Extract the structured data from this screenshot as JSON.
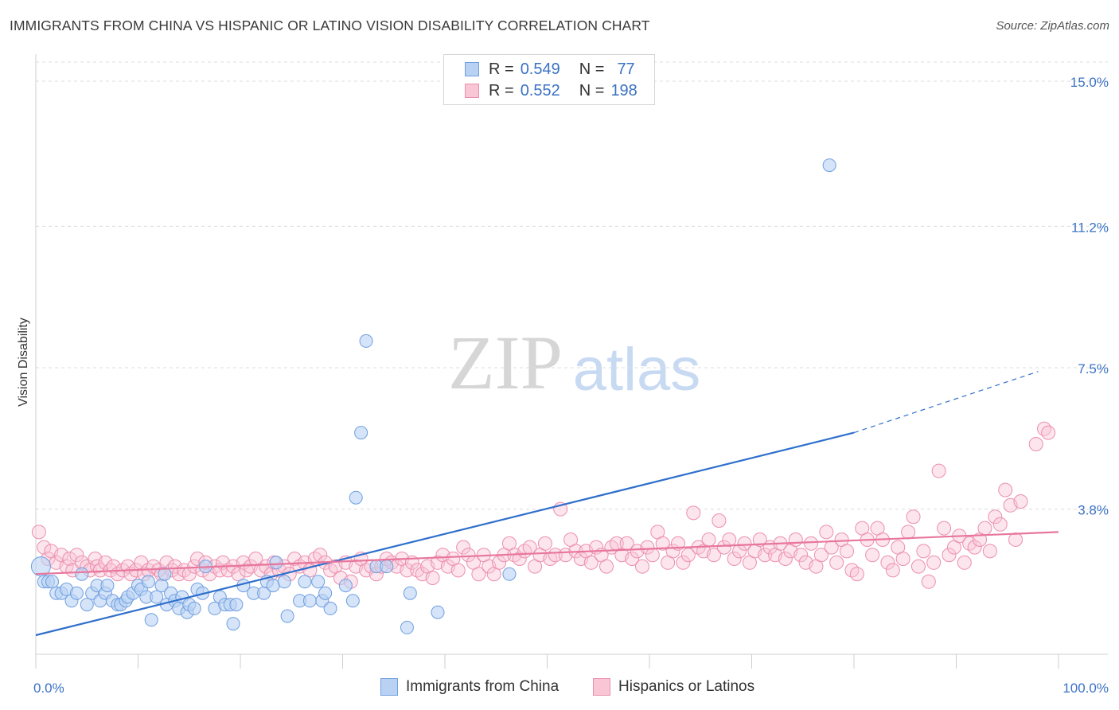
{
  "title": "IMMIGRANTS FROM CHINA VS HISPANIC OR LATINO VISION DISABILITY CORRELATION CHART",
  "source": "Source: ZipAtlas.com",
  "watermark": {
    "zip": "ZIP",
    "atlas": "atlas"
  },
  "legend": {
    "r_label": "R =",
    "n_label": "N =",
    "series": [
      {
        "name": "Immigrants from China",
        "r": "0.549",
        "n": "77"
      },
      {
        "name": "Hispanics or Latinos",
        "r": "0.552",
        "n": "198"
      }
    ]
  },
  "colors": {
    "blue_fill": "#b9d2f4",
    "blue_stroke": "#6f9fe0",
    "blue_line": "#2f6fcc",
    "pink_fill": "#f9c6d6",
    "pink_stroke": "#ec8fae",
    "pink_line": "#e8769c",
    "tick_label": "#3b72c4",
    "grid": "#dcdcdc"
  },
  "chart_data": {
    "type": "scatter",
    "title": "IMMIGRANTS FROM CHINA VS HISPANIC OR LATINO VISION DISABILITY CORRELATION CHART",
    "xlabel": "",
    "ylabel": "Vision Disability",
    "xlim": [
      0,
      100
    ],
    "ylim": [
      0,
      15.5
    ],
    "x_tick_labels": [
      "0.0%",
      "100.0%"
    ],
    "y_ticks": [
      3.8,
      7.5,
      11.2,
      15.0
    ],
    "y_tick_labels": [
      "3.8%",
      "7.5%",
      "11.2%",
      "15.0%"
    ],
    "grid": "horizontal dashed",
    "series": [
      {
        "name": "Immigrants from China",
        "r": 0.549,
        "n": 77,
        "trend": {
          "x0": 0,
          "y0": 0.5,
          "x1": 80,
          "y1": 5.8,
          "dashed_to_x": 98,
          "dashed_to_y": 7.4
        },
        "points": [
          [
            0.5,
            2.3
          ],
          [
            0.8,
            1.9
          ],
          [
            1.2,
            1.9
          ],
          [
            1.6,
            1.9
          ],
          [
            2.0,
            1.6
          ],
          [
            2.5,
            1.6
          ],
          [
            3.0,
            1.7
          ],
          [
            3.5,
            1.4
          ],
          [
            4.0,
            1.6
          ],
          [
            4.5,
            2.1
          ],
          [
            5.0,
            1.3
          ],
          [
            5.5,
            1.6
          ],
          [
            6.0,
            1.8
          ],
          [
            6.3,
            1.4
          ],
          [
            6.8,
            1.6
          ],
          [
            7.0,
            1.8
          ],
          [
            7.5,
            1.4
          ],
          [
            8.0,
            1.3
          ],
          [
            8.3,
            1.3
          ],
          [
            8.8,
            1.4
          ],
          [
            9.0,
            1.5
          ],
          [
            9.5,
            1.6
          ],
          [
            10.0,
            1.8
          ],
          [
            10.3,
            1.7
          ],
          [
            10.8,
            1.5
          ],
          [
            11.0,
            1.9
          ],
          [
            11.3,
            0.9
          ],
          [
            11.8,
            1.5
          ],
          [
            12.3,
            1.8
          ],
          [
            12.6,
            2.1
          ],
          [
            12.8,
            1.3
          ],
          [
            13.2,
            1.6
          ],
          [
            13.6,
            1.4
          ],
          [
            14.0,
            1.2
          ],
          [
            14.3,
            1.5
          ],
          [
            14.8,
            1.1
          ],
          [
            15.0,
            1.3
          ],
          [
            15.5,
            1.2
          ],
          [
            15.8,
            1.7
          ],
          [
            16.3,
            1.6
          ],
          [
            16.6,
            2.3
          ],
          [
            17.5,
            1.2
          ],
          [
            18.0,
            1.5
          ],
          [
            18.5,
            1.3
          ],
          [
            19.0,
            1.3
          ],
          [
            19.3,
            0.8
          ],
          [
            19.6,
            1.3
          ],
          [
            20.3,
            1.8
          ],
          [
            21.3,
            1.6
          ],
          [
            22.3,
            1.6
          ],
          [
            22.6,
            1.9
          ],
          [
            23.2,
            1.8
          ],
          [
            23.5,
            2.4
          ],
          [
            24.3,
            1.9
          ],
          [
            24.6,
            1.0
          ],
          [
            25.8,
            1.4
          ],
          [
            26.3,
            1.9
          ],
          [
            26.8,
            1.4
          ],
          [
            27.6,
            1.9
          ],
          [
            28.0,
            1.4
          ],
          [
            28.3,
            1.6
          ],
          [
            28.8,
            1.2
          ],
          [
            30.3,
            1.8
          ],
          [
            31.0,
            1.4
          ],
          [
            31.3,
            4.1
          ],
          [
            31.8,
            5.8
          ],
          [
            32.3,
            8.2
          ],
          [
            33.3,
            2.3
          ],
          [
            34.3,
            2.3
          ],
          [
            36.3,
            0.7
          ],
          [
            36.6,
            1.6
          ],
          [
            39.3,
            1.1
          ],
          [
            46.3,
            2.1
          ],
          [
            77.6,
            12.8
          ]
        ]
      },
      {
        "name": "Hispanics or Latinos",
        "r": 0.552,
        "n": 198,
        "trend": {
          "x0": 0,
          "y0": 2.1,
          "x1": 100,
          "y1": 3.2
        },
        "points": [
          [
            0.3,
            3.2
          ],
          [
            0.8,
            2.8
          ],
          [
            1.2,
            2.5
          ],
          [
            1.5,
            2.7
          ],
          [
            2.0,
            2.4
          ],
          [
            2.5,
            2.6
          ],
          [
            3.0,
            2.3
          ],
          [
            3.3,
            2.5
          ],
          [
            3.6,
            2.2
          ],
          [
            4.0,
            2.6
          ],
          [
            4.5,
            2.4
          ],
          [
            5.0,
            2.3
          ],
          [
            5.3,
            2.2
          ],
          [
            5.8,
            2.5
          ],
          [
            6.0,
            2.3
          ],
          [
            6.3,
            2.2
          ],
          [
            6.8,
            2.4
          ],
          [
            7.3,
            2.2
          ],
          [
            7.6,
            2.3
          ],
          [
            8.0,
            2.1
          ],
          [
            8.5,
            2.2
          ],
          [
            9.0,
            2.3
          ],
          [
            9.3,
            2.1
          ],
          [
            9.8,
            2.2
          ],
          [
            10.3,
            2.4
          ],
          [
            10.6,
            2.1
          ],
          [
            11.0,
            2.2
          ],
          [
            11.5,
            2.3
          ],
          [
            12.0,
            2.2
          ],
          [
            12.3,
            2.1
          ],
          [
            12.8,
            2.4
          ],
          [
            13.3,
            2.2
          ],
          [
            13.6,
            2.3
          ],
          [
            14.0,
            2.1
          ],
          [
            14.5,
            2.2
          ],
          [
            15.0,
            2.1
          ],
          [
            15.5,
            2.3
          ],
          [
            15.8,
            2.5
          ],
          [
            16.3,
            2.2
          ],
          [
            16.6,
            2.4
          ],
          [
            17.0,
            2.1
          ],
          [
            17.5,
            2.3
          ],
          [
            18.0,
            2.2
          ],
          [
            18.3,
            2.4
          ],
          [
            18.8,
            2.2
          ],
          [
            19.3,
            2.3
          ],
          [
            19.8,
            2.1
          ],
          [
            20.3,
            2.4
          ],
          [
            20.6,
            2.2
          ],
          [
            21.0,
            2.3
          ],
          [
            21.5,
            2.5
          ],
          [
            22.0,
            2.2
          ],
          [
            22.5,
            2.3
          ],
          [
            23.0,
            2.1
          ],
          [
            23.3,
            2.4
          ],
          [
            23.8,
            2.2
          ],
          [
            24.3,
            2.3
          ],
          [
            24.8,
            2.1
          ],
          [
            25.3,
            2.5
          ],
          [
            25.8,
            2.3
          ],
          [
            26.3,
            2.4
          ],
          [
            26.8,
            2.2
          ],
          [
            27.3,
            2.5
          ],
          [
            27.8,
            2.6
          ],
          [
            28.3,
            2.4
          ],
          [
            28.8,
            2.2
          ],
          [
            29.3,
            2.3
          ],
          [
            29.8,
            2.0
          ],
          [
            30.3,
            2.4
          ],
          [
            30.8,
            1.9
          ],
          [
            31.3,
            2.3
          ],
          [
            31.8,
            2.5
          ],
          [
            32.3,
            2.2
          ],
          [
            32.8,
            2.3
          ],
          [
            33.3,
            2.1
          ],
          [
            33.8,
            2.3
          ],
          [
            34.3,
            2.5
          ],
          [
            34.8,
            2.4
          ],
          [
            35.3,
            2.3
          ],
          [
            35.8,
            2.5
          ],
          [
            36.3,
            2.2
          ],
          [
            36.8,
            2.4
          ],
          [
            37.3,
            2.2
          ],
          [
            37.8,
            2.1
          ],
          [
            38.3,
            2.3
          ],
          [
            38.8,
            2.0
          ],
          [
            39.3,
            2.4
          ],
          [
            39.8,
            2.6
          ],
          [
            40.3,
            2.3
          ],
          [
            40.8,
            2.5
          ],
          [
            41.3,
            2.2
          ],
          [
            41.8,
            2.8
          ],
          [
            42.3,
            2.6
          ],
          [
            42.8,
            2.4
          ],
          [
            43.3,
            2.1
          ],
          [
            43.8,
            2.6
          ],
          [
            44.3,
            2.3
          ],
          [
            44.8,
            2.1
          ],
          [
            45.3,
            2.4
          ],
          [
            45.8,
            2.6
          ],
          [
            46.3,
            2.9
          ],
          [
            46.8,
            2.6
          ],
          [
            47.3,
            2.5
          ],
          [
            47.8,
            2.7
          ],
          [
            48.3,
            2.8
          ],
          [
            48.8,
            2.3
          ],
          [
            49.3,
            2.6
          ],
          [
            49.8,
            2.9
          ],
          [
            50.3,
            2.5
          ],
          [
            50.8,
            2.6
          ],
          [
            51.3,
            3.8
          ],
          [
            51.8,
            2.6
          ],
          [
            52.3,
            3.0
          ],
          [
            52.8,
            2.7
          ],
          [
            53.3,
            2.5
          ],
          [
            53.8,
            2.7
          ],
          [
            54.3,
            2.4
          ],
          [
            54.8,
            2.8
          ],
          [
            55.3,
            2.6
          ],
          [
            55.8,
            2.3
          ],
          [
            56.3,
            2.8
          ],
          [
            56.8,
            2.9
          ],
          [
            57.3,
            2.6
          ],
          [
            57.8,
            2.9
          ],
          [
            58.3,
            2.5
          ],
          [
            58.8,
            2.7
          ],
          [
            59.3,
            2.3
          ],
          [
            59.8,
            2.8
          ],
          [
            60.3,
            2.6
          ],
          [
            60.8,
            3.2
          ],
          [
            61.3,
            2.9
          ],
          [
            61.8,
            2.4
          ],
          [
            62.3,
            2.7
          ],
          [
            62.8,
            2.9
          ],
          [
            63.3,
            2.4
          ],
          [
            63.8,
            2.6
          ],
          [
            64.3,
            3.7
          ],
          [
            64.8,
            2.8
          ],
          [
            65.3,
            2.7
          ],
          [
            65.8,
            3.0
          ],
          [
            66.3,
            2.6
          ],
          [
            66.8,
            3.5
          ],
          [
            67.3,
            2.8
          ],
          [
            67.8,
            3.0
          ],
          [
            68.3,
            2.5
          ],
          [
            68.8,
            2.7
          ],
          [
            69.3,
            2.9
          ],
          [
            69.8,
            2.4
          ],
          [
            70.3,
            2.7
          ],
          [
            70.8,
            3.0
          ],
          [
            71.3,
            2.6
          ],
          [
            71.8,
            2.8
          ],
          [
            72.3,
            2.6
          ],
          [
            72.8,
            2.9
          ],
          [
            73.3,
            2.5
          ],
          [
            73.8,
            2.7
          ],
          [
            74.3,
            3.0
          ],
          [
            74.8,
            2.6
          ],
          [
            75.3,
            2.4
          ],
          [
            75.8,
            2.9
          ],
          [
            76.3,
            2.3
          ],
          [
            76.8,
            2.6
          ],
          [
            77.3,
            3.2
          ],
          [
            77.8,
            2.8
          ],
          [
            78.3,
            2.4
          ],
          [
            78.8,
            3.0
          ],
          [
            79.3,
            2.7
          ],
          [
            79.8,
            2.2
          ],
          [
            80.3,
            2.1
          ],
          [
            80.8,
            3.3
          ],
          [
            81.3,
            3.0
          ],
          [
            81.8,
            2.6
          ],
          [
            82.3,
            3.3
          ],
          [
            82.8,
            3.0
          ],
          [
            83.3,
            2.4
          ],
          [
            83.8,
            2.2
          ],
          [
            84.3,
            2.8
          ],
          [
            84.8,
            2.5
          ],
          [
            85.3,
            3.2
          ],
          [
            85.8,
            3.6
          ],
          [
            86.3,
            2.3
          ],
          [
            86.8,
            2.7
          ],
          [
            87.3,
            1.9
          ],
          [
            87.8,
            2.4
          ],
          [
            88.3,
            4.8
          ],
          [
            88.8,
            3.3
          ],
          [
            89.3,
            2.6
          ],
          [
            89.8,
            2.8
          ],
          [
            90.3,
            3.1
          ],
          [
            90.8,
            2.4
          ],
          [
            91.3,
            2.9
          ],
          [
            91.8,
            2.8
          ],
          [
            92.3,
            3.0
          ],
          [
            92.8,
            3.3
          ],
          [
            93.3,
            2.7
          ],
          [
            93.8,
            3.6
          ],
          [
            94.3,
            3.4
          ],
          [
            94.8,
            4.3
          ],
          [
            95.3,
            3.9
          ],
          [
            95.8,
            3.0
          ],
          [
            96.3,
            4.0
          ],
          [
            97.8,
            5.5
          ],
          [
            98.6,
            5.9
          ],
          [
            99.0,
            5.8
          ]
        ]
      }
    ]
  }
}
